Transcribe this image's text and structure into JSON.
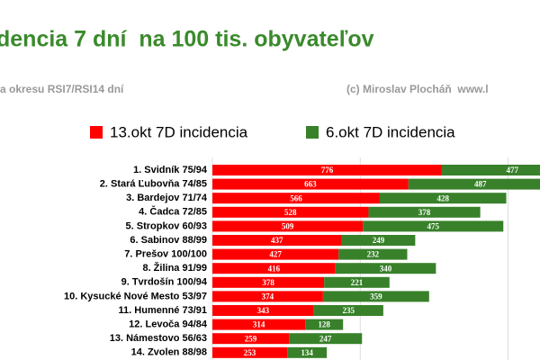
{
  "chart_data": {
    "type": "stacked-hbar",
    "title": "dencia 7 dní  na 100 tis. obyvateľov",
    "subtitle": "a okresu RSI7/RSI14 dní",
    "credit": "(c) Miroslav Plocháň  www.l",
    "categories": [
      "1. Svidník 75/94",
      "2. Stará Ľubovňa 74/85",
      "3. Bardejov 71/74",
      "4. Čadca 72/85",
      "5. Stropkov 60/93",
      "6. Sabinov 88/99",
      "7. Prešov 100/100",
      "8. Žilina 91/99",
      "9. Tvrdošín 100/94",
      "10. Kysucké Nové Mesto 53/97",
      "11. Humenné 73/91",
      "12. Levoča 94/84",
      "13. Námestovo 56/63",
      "14. Zvolen 88/98"
    ],
    "series": [
      {
        "name": "13.okt 7D incidencia",
        "color": "#ff0000",
        "values": [
          776,
          663,
          566,
          528,
          509,
          437,
          427,
          416,
          378,
          374,
          343,
          314,
          259,
          253
        ]
      },
      {
        "name": "6.okt 7D incidencia",
        "color": "#38812a",
        "values": [
          477,
          487,
          428,
          378,
          475,
          249,
          232,
          340,
          221,
          359,
          235,
          128,
          247,
          134
        ]
      }
    ],
    "xlim": [
      0,
      1108
    ],
    "xticks": [
      0,
      500,
      1000
    ],
    "grid": true,
    "show_tick_labels": false
  }
}
